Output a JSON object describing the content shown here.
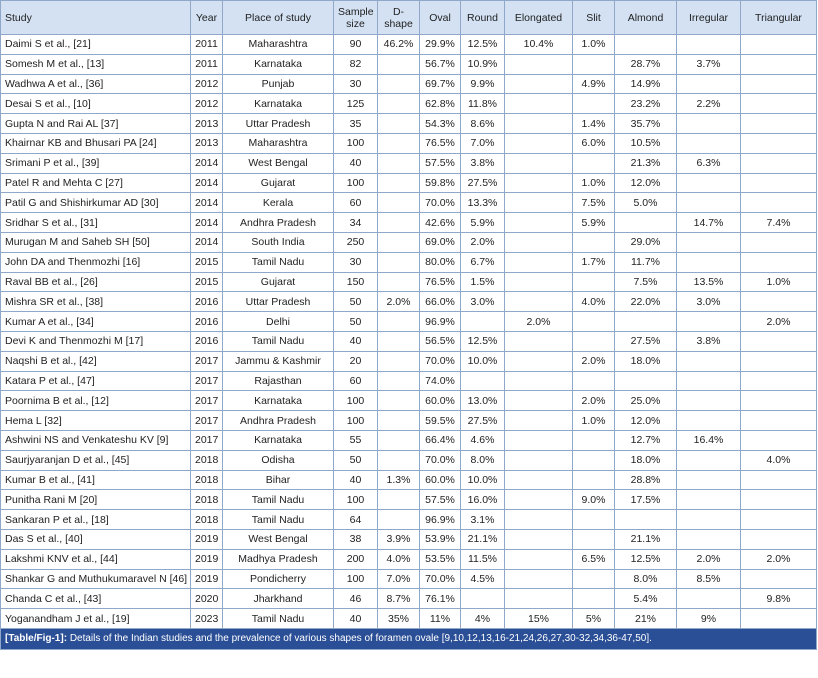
{
  "table": {
    "headers": [
      "Study",
      "Year",
      "Place of study",
      "Sample size",
      "D-shape",
      "Oval",
      "Round",
      "Elongated",
      "Slit",
      "Almond",
      "Irregular",
      "Triangular"
    ],
    "rows": [
      [
        "Daimi S et al., [21]",
        2011,
        "Maharashtra",
        90,
        "46.2%",
        "29.9%",
        "12.5%",
        "10.4%",
        "1.0%",
        null,
        null,
        null
      ],
      [
        "Somesh M et al., [13]",
        2011,
        "Karnataka",
        82,
        null,
        "56.7%",
        "10.9%",
        null,
        null,
        "28.7%",
        "3.7%",
        null
      ],
      [
        "Wadhwa A et al., [36]",
        2012,
        "Punjab",
        30,
        null,
        "69.7%",
        "9.9%",
        null,
        "4.9%",
        "14.9%",
        null,
        null
      ],
      [
        "Desai S et al., [10]",
        2012,
        "Karnataka",
        125,
        null,
        "62.8%",
        "11.8%",
        null,
        null,
        "23.2%",
        "2.2%",
        null
      ],
      [
        "Gupta N and Rai AL [37]",
        2013,
        "Uttar Pradesh",
        35,
        null,
        "54.3%",
        "8.6%",
        null,
        "1.4%",
        "35.7%",
        null,
        null
      ],
      [
        "Khairnar KB and Bhusari PA [24]",
        2013,
        "Maharashtra",
        100,
        null,
        "76.5%",
        "7.0%",
        null,
        "6.0%",
        "10.5%",
        null,
        null
      ],
      [
        "Srimani P et al., [39]",
        2014,
        "West Bengal",
        40,
        null,
        "57.5%",
        "3.8%",
        null,
        null,
        "21.3%",
        "6.3%",
        null
      ],
      [
        "Patel R and Mehta C [27]",
        2014,
        "Gujarat",
        100,
        null,
        "59.8%",
        "27.5%",
        null,
        "1.0%",
        "12.0%",
        null,
        null
      ],
      [
        "Patil G and Shishirkumar AD [30]",
        2014,
        "Kerala",
        60,
        null,
        "70.0%",
        "13.3%",
        null,
        "7.5%",
        "5.0%",
        null,
        null
      ],
      [
        "Sridhar S et al., [31]",
        2014,
        "Andhra Pradesh",
        34,
        null,
        "42.6%",
        "5.9%",
        null,
        "5.9%",
        null,
        "14.7%",
        "7.4%"
      ],
      [
        "Murugan M and Saheb SH [50]",
        2014,
        "South India",
        250,
        null,
        "69.0%",
        "2.0%",
        null,
        null,
        "29.0%",
        null,
        null
      ],
      [
        "John DA and Thenmozhi [16]",
        2015,
        "Tamil Nadu",
        30,
        null,
        "80.0%",
        "6.7%",
        null,
        "1.7%",
        "11.7%",
        null,
        null
      ],
      [
        "Raval BB et al., [26]",
        2015,
        "Gujarat",
        150,
        null,
        "76.5%",
        "1.5%",
        null,
        null,
        "7.5%",
        "13.5%",
        "1.0%"
      ],
      [
        "Mishra SR et al., [38]",
        2016,
        "Uttar Pradesh",
        50,
        "2.0%",
        "66.0%",
        "3.0%",
        null,
        "4.0%",
        "22.0%",
        "3.0%",
        null
      ],
      [
        "Kumar A et al., [34]",
        2016,
        "Delhi",
        50,
        null,
        "96.9%",
        null,
        "2.0%",
        null,
        null,
        null,
        "2.0%"
      ],
      [
        "Devi K and Thenmozhi M [17]",
        2016,
        "Tamil Nadu",
        40,
        null,
        "56.5%",
        "12.5%",
        null,
        null,
        "27.5%",
        "3.8%",
        null
      ],
      [
        "Naqshi B et al., [42]",
        2017,
        "Jammu & Kashmir",
        20,
        null,
        "70.0%",
        "10.0%",
        null,
        "2.0%",
        "18.0%",
        null,
        null
      ],
      [
        "Katara P et al., [47]",
        2017,
        "Rajasthan",
        60,
        null,
        "74.0%",
        null,
        null,
        null,
        null,
        null,
        null
      ],
      [
        "Poornima B et al., [12]",
        2017,
        "Karnataka",
        100,
        null,
        "60.0%",
        "13.0%",
        null,
        "2.0%",
        "25.0%",
        null,
        null
      ],
      [
        "Hema L [32]",
        2017,
        "Andhra Pradesh",
        100,
        null,
        "59.5%",
        "27.5%",
        null,
        "1.0%",
        "12.0%",
        null,
        null
      ],
      [
        "Ashwini NS and Venkateshu KV [9]",
        2017,
        "Karnataka",
        55,
        null,
        "66.4%",
        "4.6%",
        null,
        null,
        "12.7%",
        "16.4%",
        null
      ],
      [
        "Saurjyaranjan D et al., [45]",
        2018,
        "Odisha",
        50,
        null,
        "70.0%",
        "8.0%",
        null,
        null,
        "18.0%",
        null,
        "4.0%"
      ],
      [
        "Kumar B et al., [41]",
        2018,
        "Bihar",
        40,
        "1.3%",
        "60.0%",
        "10.0%",
        null,
        null,
        "28.8%",
        null,
        null
      ],
      [
        "Punitha Rani M [20]",
        2018,
        "Tamil Nadu",
        100,
        null,
        "57.5%",
        "16.0%",
        null,
        "9.0%",
        "17.5%",
        null,
        null
      ],
      [
        "Sankaran P et al., [18]",
        2018,
        "Tamil Nadu",
        64,
        null,
        "96.9%",
        "3.1%",
        null,
        null,
        null,
        null,
        null
      ],
      [
        "Das S et al., [40]",
        2019,
        "West Bengal",
        38,
        "3.9%",
        "53.9%",
        "21.1%",
        null,
        null,
        "21.1%",
        null,
        null
      ],
      [
        "Lakshmi KNV et al., [44]",
        2019,
        "Madhya Pradesh",
        200,
        "4.0%",
        "53.5%",
        "11.5%",
        null,
        "6.5%",
        "12.5%",
        "2.0%",
        "2.0%"
      ],
      [
        "Shankar G and Muthukumaravel N [46]",
        2019,
        "Pondicherry",
        100,
        "7.0%",
        "70.0%",
        "4.5%",
        null,
        null,
        "8.0%",
        "8.5%",
        null
      ],
      [
        "Chanda C et al., [43]",
        2020,
        "Jharkhand",
        46,
        "8.7%",
        "76.1%",
        null,
        null,
        null,
        "5.4%",
        null,
        "9.8%"
      ],
      [
        "Yoganandham J et al., [19]",
        2023,
        "Tamil Nadu",
        40,
        "35%",
        "11%",
        "4%",
        "15%",
        "5%",
        "21%",
        "9%",
        null
      ]
    ],
    "caption": {
      "label": "[Table/Fig-1]:",
      "text": "Details of the Indian studies and the prevalence of various shapes of foramen ovale [9,10,12,13,16-21,24,26,27,30-32,34,36-47,50]."
    }
  }
}
